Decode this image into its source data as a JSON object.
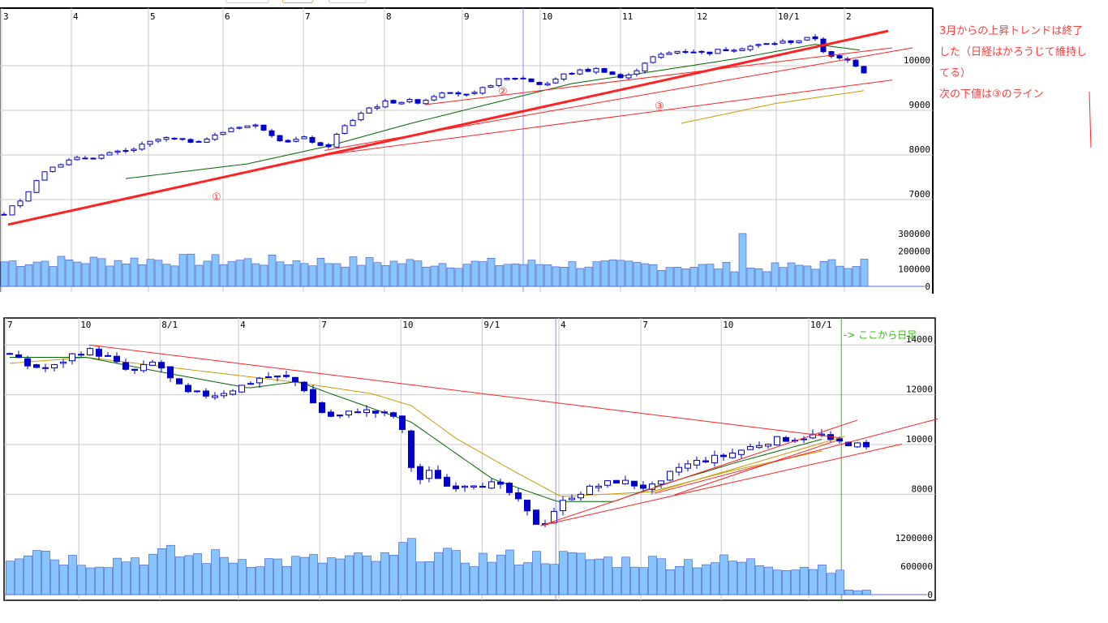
{
  "toolbar": {
    "partial_buttons": 3
  },
  "annotations": {
    "line1": "3月からの上昇トレンドは終了",
    "line2": "した（日経はかろうじて維持し",
    "line3": "てる）",
    "line4": "次の下値は③のライン",
    "daily_marker": "-> ここから日足",
    "trend_labels": [
      "①",
      "②",
      "③"
    ]
  },
  "colors": {
    "up_border": "#0000cc",
    "down_fill": "#0000cc",
    "ma_short": "#006600",
    "ma_long": "#cc9900",
    "trend": "#ff2222",
    "volume": "#88c4ff",
    "grid": "#c8c8c8",
    "marker": "#8888ff",
    "daily_line": "#33bb11"
  },
  "chart_data": [
    {
      "type": "candlestick",
      "title": "upper",
      "x_tick_labels": [
        [
          "3",
          0
        ],
        [
          "4",
          8.6
        ],
        [
          "5",
          18.1
        ],
        [
          "6",
          27.3
        ],
        [
          "7",
          37.2
        ],
        [
          "8",
          47.2
        ],
        [
          "9",
          56.8
        ],
        [
          "10",
          66.4
        ],
        [
          "11",
          76.3
        ],
        [
          "12",
          85.5
        ],
        [
          "10/1",
          95.5
        ],
        [
          "2",
          103.9
        ]
      ],
      "y_ticks": [
        7000,
        8000,
        9000,
        10000
      ],
      "volume_ticks": [
        0,
        100000,
        200000,
        300000
      ],
      "close_anchors": [
        [
          0,
          6650
        ],
        [
          2.5,
          7100
        ],
        [
          5.5,
          7750
        ],
        [
          9.5,
          7930
        ],
        [
          12.5,
          8000
        ],
        [
          15.5,
          8100
        ],
        [
          19.5,
          8380
        ],
        [
          22.5,
          8300
        ],
        [
          25.5,
          8380
        ],
        [
          28.5,
          8650
        ],
        [
          31.5,
          8650
        ],
        [
          34.5,
          8300
        ],
        [
          37.5,
          8380
        ],
        [
          39.5,
          8100
        ],
        [
          41.5,
          8560
        ],
        [
          44.5,
          9020
        ],
        [
          47.5,
          9200
        ],
        [
          51.5,
          9200
        ],
        [
          54.5,
          9470
        ],
        [
          57.5,
          9300
        ],
        [
          60.5,
          9650
        ],
        [
          63.5,
          9750
        ],
        [
          66.5,
          9560
        ],
        [
          69.5,
          9840
        ],
        [
          73.5,
          9930
        ],
        [
          76.5,
          9690
        ],
        [
          79.5,
          10160
        ],
        [
          83.5,
          10350
        ],
        [
          86.5,
          10290
        ],
        [
          89.5,
          10380
        ],
        [
          93.5,
          10470
        ],
        [
          97.5,
          10560
        ],
        [
          100,
          10620
        ],
        [
          101.5,
          10200
        ],
        [
          104.5,
          10100
        ],
        [
          106,
          9870
        ]
      ],
      "bars": 107,
      "ma_short": [
        [
          15,
          7470
        ],
        [
          30,
          7800
        ],
        [
          40,
          8200
        ],
        [
          50,
          8700
        ],
        [
          60,
          9150
        ],
        [
          70,
          9600
        ],
        [
          80,
          9870
        ],
        [
          90,
          10150
        ],
        [
          100,
          10480
        ],
        [
          105.5,
          10350
        ]
      ],
      "ma_long": [
        [
          83.5,
          8710
        ],
        [
          95,
          9150
        ],
        [
          106,
          9440
        ]
      ],
      "volume_anchors": [
        [
          0,
          140000
        ],
        [
          20,
          150000
        ],
        [
          40,
          140000
        ],
        [
          60,
          130000
        ],
        [
          80,
          120000
        ],
        [
          90,
          110000
        ],
        [
          91,
          300000
        ],
        [
          92,
          100000
        ],
        [
          100,
          120000
        ],
        [
          106,
          140000
        ]
      ],
      "trend_lines": [
        {
          "label": "①",
          "from": [
            0.5,
            6440
          ],
          "to": [
            109,
            10780
          ],
          "width": 3
        },
        {
          "label": "②",
          "from": [
            52,
            9130
          ],
          "to": [
            109.5,
            10400
          ],
          "width": 1
        },
        {
          "label": "",
          "from": [
            39.5,
            8100
          ],
          "to": [
            112,
            10400
          ],
          "width": 1
        },
        {
          "label": "③",
          "from": [
            40.5,
            8020
          ],
          "to": [
            109.5,
            9680
          ],
          "width": 1
        }
      ],
      "marker_bar": 64,
      "ylim": [
        6200,
        11300
      ]
    },
    {
      "type": "candlestick",
      "title": "lower",
      "x_tick_labels": [
        [
          "7",
          0
        ],
        [
          "10",
          8.2
        ],
        [
          "8/1",
          17.3
        ],
        [
          "4",
          26.1
        ],
        [
          "7",
          35.2
        ],
        [
          "10",
          44.3
        ],
        [
          "9/1",
          53.4
        ],
        [
          "4",
          62
        ],
        [
          "7",
          71.2
        ],
        [
          "10",
          80.2
        ],
        [
          "10/1",
          90
        ]
      ],
      "y_ticks": [
        8000,
        10000,
        12000,
        14000
      ],
      "volume_ticks": [
        0,
        600000,
        1200000
      ],
      "close_anchors": [
        [
          0,
          13610
        ],
        [
          1.8,
          13190
        ],
        [
          4.5,
          13020
        ],
        [
          7.3,
          13670
        ],
        [
          9.1,
          13770
        ],
        [
          10.9,
          13500
        ],
        [
          13.6,
          12860
        ],
        [
          16.4,
          13350
        ],
        [
          18.2,
          12530
        ],
        [
          20,
          12050
        ],
        [
          22.7,
          11980
        ],
        [
          25.5,
          12270
        ],
        [
          28.2,
          12700
        ],
        [
          30.9,
          12700
        ],
        [
          32.7,
          12400
        ],
        [
          34.5,
          11390
        ],
        [
          36.4,
          11070
        ],
        [
          39.1,
          11390
        ],
        [
          41.8,
          11230
        ],
        [
          43.6,
          11100
        ],
        [
          44.5,
          9770
        ],
        [
          45.5,
          8460
        ],
        [
          47.3,
          8960
        ],
        [
          49.1,
          8300
        ],
        [
          51.8,
          8450
        ],
        [
          54.5,
          8400
        ],
        [
          56.4,
          7970
        ],
        [
          58.2,
          7160
        ],
        [
          59.5,
          6670
        ],
        [
          60.9,
          7320
        ],
        [
          62.7,
          7910
        ],
        [
          65.5,
          8300
        ],
        [
          68.2,
          8560
        ],
        [
          70.9,
          8300
        ],
        [
          72.7,
          8300
        ],
        [
          74.5,
          9020
        ],
        [
          77.3,
          9340
        ],
        [
          80,
          9540
        ],
        [
          82.7,
          9860
        ],
        [
          85.5,
          10190
        ],
        [
          88.2,
          10250
        ],
        [
          90.9,
          10420
        ],
        [
          91.8,
          10090
        ],
        [
          93.6,
          10090
        ],
        [
          95.5,
          9930
        ],
        [
          96,
          9840
        ]
      ],
      "bars": 97,
      "ma_short": [
        [
          0,
          13500
        ],
        [
          8.6,
          13500
        ],
        [
          17.7,
          12860
        ],
        [
          26.8,
          12270
        ],
        [
          32.3,
          12530
        ],
        [
          35.9,
          12050
        ],
        [
          45,
          10900
        ],
        [
          54.1,
          8620
        ],
        [
          61.4,
          7710
        ],
        [
          67.7,
          7710
        ],
        [
          72.3,
          8300
        ],
        [
          81.4,
          9280
        ],
        [
          91.4,
          10250
        ]
      ],
      "ma_long": [
        [
          0,
          13260
        ],
        [
          8.6,
          13500
        ],
        [
          17.7,
          13110
        ],
        [
          31.4,
          12530
        ],
        [
          40.5,
          12050
        ],
        [
          45,
          11560
        ],
        [
          50,
          10250
        ],
        [
          56.4,
          8950
        ],
        [
          61.8,
          7910
        ],
        [
          71.8,
          8100
        ],
        [
          80.9,
          8950
        ],
        [
          91.4,
          9770
        ]
      ],
      "volume_anchors": [
        [
          0,
          850000
        ],
        [
          3,
          1050000
        ],
        [
          5,
          800000
        ],
        [
          10,
          700000
        ],
        [
          18,
          850000
        ],
        [
          30,
          700000
        ],
        [
          43,
          750000
        ],
        [
          44,
          1000000
        ],
        [
          50,
          750000
        ],
        [
          60,
          800000
        ],
        [
          70,
          700000
        ],
        [
          80,
          700000
        ],
        [
          90,
          600000
        ],
        [
          93,
          600000
        ],
        [
          94,
          80000
        ],
        [
          96,
          100000
        ]
      ],
      "trend_lines": [
        {
          "label": "",
          "from": [
            8.9,
            14000
          ],
          "to": [
            93.2,
            10260
          ],
          "width": 1
        },
        {
          "label": "",
          "from": [
            59.5,
            6740
          ],
          "to": [
            95,
            10980
          ],
          "width": 1
        },
        {
          "label": "",
          "from": [
            59.5,
            6740
          ],
          "to": [
            100,
            10020
          ],
          "width": 1
        },
        {
          "label": "",
          "from": [
            72.3,
            8040
          ],
          "to": [
            104,
            11030
          ],
          "width": 1
        },
        {
          "label": "",
          "from": [
            74.5,
            7980
          ],
          "to": [
            92.7,
            10160
          ],
          "width": 1
        }
      ],
      "orange_lines": [
        {
          "from": [
            71.8,
            8040
          ],
          "to": [
            93.6,
            10330
          ]
        }
      ],
      "marker_bar": 61.2,
      "daily_start_bar": 93.2,
      "ylim": [
        6400,
        15000
      ]
    }
  ]
}
